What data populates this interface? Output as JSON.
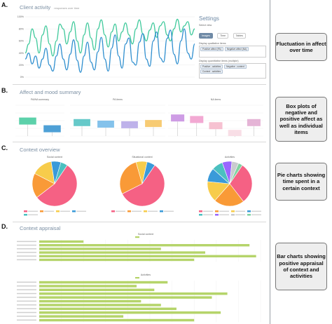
{
  "sections": [
    {
      "letter": "A.",
      "title": "Client activity",
      "subtitle": "responses over time"
    },
    {
      "letter": "B.",
      "title": "Affect and mood summary"
    },
    {
      "letter": "C.",
      "title": "Context overview"
    },
    {
      "letter": "D.",
      "title": "Context appraisal"
    }
  ],
  "notes": [
    "Fluctuation in affect over time",
    "Box plots of negative and positive affect as well as individual items",
    "Pie charts showing time spent in a certain context",
    "Bar charts showing positive appraisal of context and activities"
  ],
  "settings": {
    "title": "Settings",
    "select_view_label": "Select view",
    "buttons": [
      "Images",
      "Time",
      "Tables"
    ],
    "qual_label": "Display qualitative items",
    "qual_chips": [
      "Positive affect (PA)",
      "Negative affect (NA)"
    ],
    "quant_label": "Display quantitative items (multiple)",
    "quant_chips": [
      "Positive - activities",
      "Negative - context",
      "Context - activities"
    ]
  },
  "colors": {
    "line_green": "#3fc99b",
    "line_blue": "#2f8fcf",
    "pie_pink": "#f56184",
    "pie_orange": "#f99a37",
    "pie_yellow": "#f7cc4b",
    "pie_blue": "#3a9ad9",
    "pie_teal": "#4bc0c0",
    "pie_purple": "#9966ff",
    "bar_green": "#b5d46a",
    "accent": "#6f8aa6"
  },
  "chart_data": [
    {
      "type": "line",
      "id": "client-activity",
      "ylim": [
        0,
        100
      ],
      "ytick_labels": [
        "100%",
        "80%",
        "60%",
        "40%",
        "20%",
        "0%"
      ],
      "series": [
        {
          "values": [
            40,
            55,
            80,
            65,
            40,
            70,
            85,
            55,
            35,
            60,
            88,
            80,
            55,
            75,
            92,
            60,
            40,
            70,
            90,
            65,
            45,
            80,
            95,
            70,
            50,
            75,
            88,
            60,
            75,
            90,
            70,
            55,
            80,
            95,
            72,
            60,
            78,
            90,
            66,
            85,
            92,
            70,
            60,
            80,
            96,
            75,
            85,
            92,
            70,
            80
          ]
        },
        {
          "values": [
            30,
            40,
            22,
            35,
            15,
            30,
            48,
            20,
            10,
            35,
            55,
            30,
            12,
            38,
            62,
            28,
            8,
            35,
            58,
            25,
            12,
            42,
            66,
            30,
            10,
            48,
            70,
            35,
            15,
            55,
            65,
            25,
            20,
            58,
            72,
            30,
            18,
            60,
            75,
            32,
            25,
            64,
            78,
            38,
            22,
            60,
            80,
            40,
            30,
            55
          ]
        }
      ]
    },
    {
      "type": "bar",
      "id": "pa-na-summary",
      "title": "PA/NA summary",
      "categories": [
        "PA",
        "NA"
      ],
      "values": [
        60,
        35
      ]
    },
    {
      "type": "bar",
      "id": "pa-items",
      "title": "PA items",
      "categories": [
        "Item 1",
        "Item 2",
        "Item 3",
        "Item 4"
      ],
      "values": [
        55,
        50,
        48,
        52
      ]
    },
    {
      "type": "bar",
      "id": "na-items",
      "title": "NA items",
      "categories": [
        "Item 1",
        "Item 2",
        "Item 3",
        "Item 4",
        "Item 5"
      ],
      "values": [
        70,
        65,
        45,
        20,
        55
      ]
    },
    {
      "type": "pie",
      "id": "social-context",
      "title": "Social context",
      "values": [
        55,
        18,
        15,
        7,
        5
      ]
    },
    {
      "type": "pie",
      "id": "situational-context",
      "title": "Situational context",
      "values": [
        58,
        28,
        8,
        6
      ]
    },
    {
      "type": "pie",
      "id": "activities",
      "title": "Activities",
      "values": [
        30,
        22,
        15,
        10,
        8,
        7,
        5,
        3
      ]
    },
    {
      "type": "bar",
      "id": "appraisal-social",
      "title": "Social context",
      "orientation": "horizontal",
      "categories": [
        "Alleen",
        "Partner",
        "Familie",
        "Vrienden",
        "Collega's",
        "Anders"
      ],
      "values": [
        20,
        95,
        55,
        75,
        98,
        70
      ],
      "xlim": [
        0,
        100
      ]
    },
    {
      "type": "bar",
      "id": "appraisal-activities",
      "title": "Activities",
      "orientation": "horizontal",
      "categories": [
        "Werk",
        "Studie",
        "Huishouden",
        "Ontspannen",
        "Sport",
        "Sociaal",
        "Media",
        "Eten",
        "Reizen",
        "Zorg",
        "Anders"
      ],
      "values": [
        58,
        44,
        52,
        85,
        78,
        46,
        55,
        62,
        82,
        38,
        70
      ],
      "xlim": [
        0,
        100
      ]
    }
  ]
}
